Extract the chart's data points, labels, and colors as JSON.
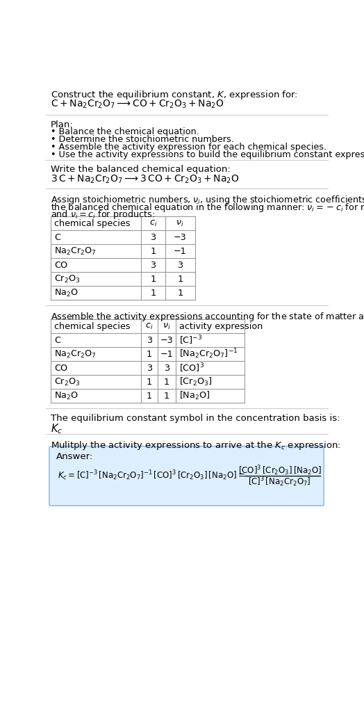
{
  "title_line1": "Construct the equilibrium constant, $K$, expression for:",
  "title_line2_plain": "C + Na₂Cr₂O₇ ⟶ CO + Cr₂O₃ + Na₂O",
  "plan_header": "Plan:",
  "plan_bullets": [
    "• Balance the chemical equation.",
    "• Determine the stoichiometric numbers.",
    "• Assemble the activity expression for each chemical species.",
    "• Use the activity expressions to build the equilibrium constant expression."
  ],
  "balanced_header": "Write the balanced chemical equation:",
  "stoich_intro_lines": [
    "Assign stoichiometric numbers, ν_i, using the stoichiometric coefficients, c_i, from",
    "the balanced chemical equation in the following manner: ν_i = −c_i for reactants",
    "and ν_i = c_i for products:"
  ],
  "table1_col_headers": [
    "chemical species",
    "c_i",
    "ν_i"
  ],
  "table1_rows": [
    [
      "C",
      "3",
      "−3"
    ],
    [
      "Na₂Cr₂O₇",
      "1",
      "−1"
    ],
    [
      "CO",
      "3",
      "3"
    ],
    [
      "Cr₂O₃",
      "1",
      "1"
    ],
    [
      "Na₂O",
      "1",
      "1"
    ]
  ],
  "activity_header": "Assemble the activity expressions accounting for the state of matter and ν_i:",
  "table2_col_headers": [
    "chemical species",
    "c_i",
    "ν_i",
    "activity expression"
  ],
  "table2_rows": [
    [
      "C",
      "3",
      "−3",
      "[C]⁻³"
    ],
    [
      "Na₂Cr₂O₇",
      "1",
      "−1",
      "[Na₂Cr₂O₇]⁻¹"
    ],
    [
      "CO",
      "3",
      "3",
      "[CO]³"
    ],
    [
      "Cr₂O₃",
      "1",
      "1",
      "[Cr₂O₃]"
    ],
    [
      "Na₂O",
      "1",
      "1",
      "[Na₂O]"
    ]
  ],
  "kc_basis_header": "The equilibrium constant symbol in the concentration basis is:",
  "kc_symbol": "K_c",
  "multiply_header": "Mulitply the activity expressions to arrive at the K_c expression:",
  "answer_label": "Answer:",
  "answer_box_bg": "#ddeeff",
  "answer_box_border": "#99bbdd",
  "bg_color": "#ffffff",
  "text_color": "#000000",
  "table_line_color": "#999999",
  "divider_color": "#cccccc",
  "font_size": 9.5,
  "small_font_size": 9.2
}
